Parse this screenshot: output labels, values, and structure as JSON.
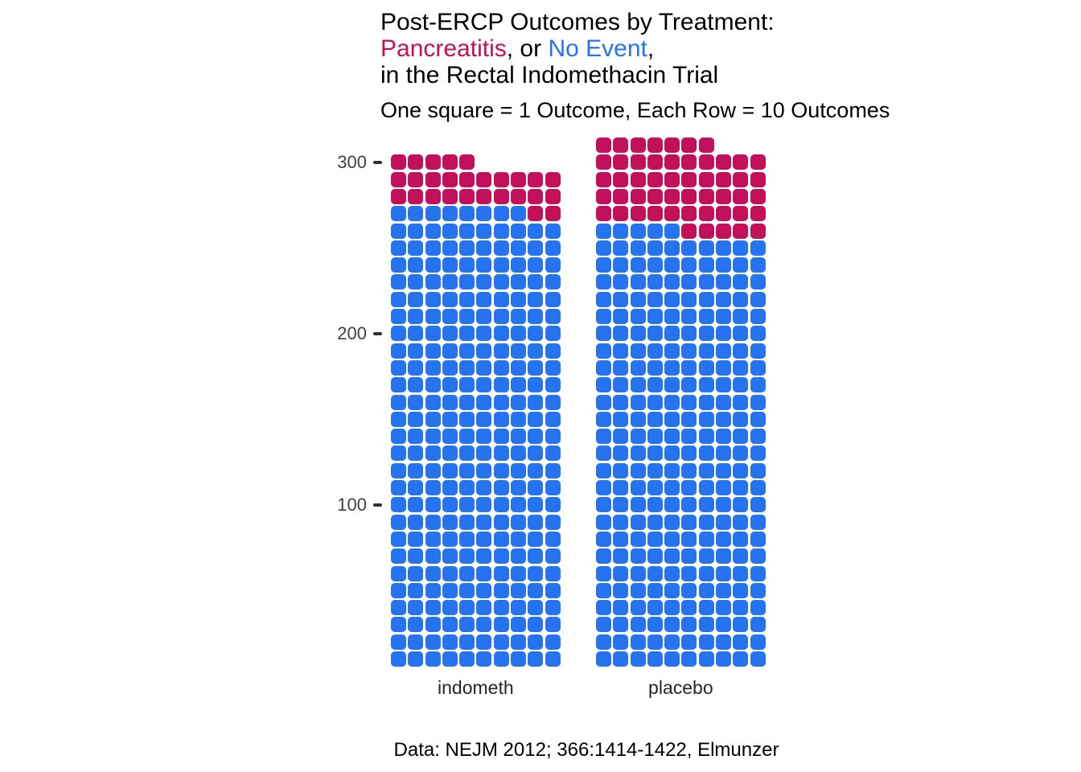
{
  "title": {
    "line1": "Post-ERCP Outcomes by Treatment:",
    "line2": {
      "pancreatitis": "Pancreatitis",
      "middle": ", or ",
      "no_event": "No Event",
      "end": ","
    },
    "line3": "in the Rectal Indomethacin Trial"
  },
  "subtitle": "One square = 1 Outcome, Each Row = 10 Outcomes",
  "caption": "Data: NEJM 2012; 366:1414-1422, Elmunzer",
  "colors": {
    "pancreatitis": "#C2105A",
    "no_event": "#2573EF",
    "axis_text": "#404040",
    "tick_mark": "#333333"
  },
  "chart_data": {
    "type": "waffle",
    "title": "Post-ERCP Outcomes by Treatment: Pancreatitis, or No Event, in the Rectal Indomethacin Trial",
    "subtitle": "One square = 1 Outcome, Each Row = 10 Outcomes",
    "square_value": 1,
    "squares_per_row": 10,
    "fill_order": "bottom-left, blue No Event first, red Pancreatitis on top",
    "y_axis": {
      "ticks": [
        {
          "label": "100",
          "row": 10
        },
        {
          "label": "200",
          "row": 20
        },
        {
          "label": "300",
          "row": 30
        }
      ]
    },
    "groups": [
      {
        "label": "indometh",
        "total": 295,
        "segments": [
          {
            "name": "No Event",
            "count": 268,
            "color_key": "no_event"
          },
          {
            "name": "Pancreatitis",
            "count": 27,
            "color_key": "pancreatitis"
          }
        ]
      },
      {
        "label": "placebo",
        "total": 307,
        "segments": [
          {
            "name": "No Event",
            "count": 255,
            "color_key": "no_event"
          },
          {
            "name": "Pancreatitis",
            "count": 52,
            "color_key": "pancreatitis"
          }
        ]
      }
    ]
  }
}
